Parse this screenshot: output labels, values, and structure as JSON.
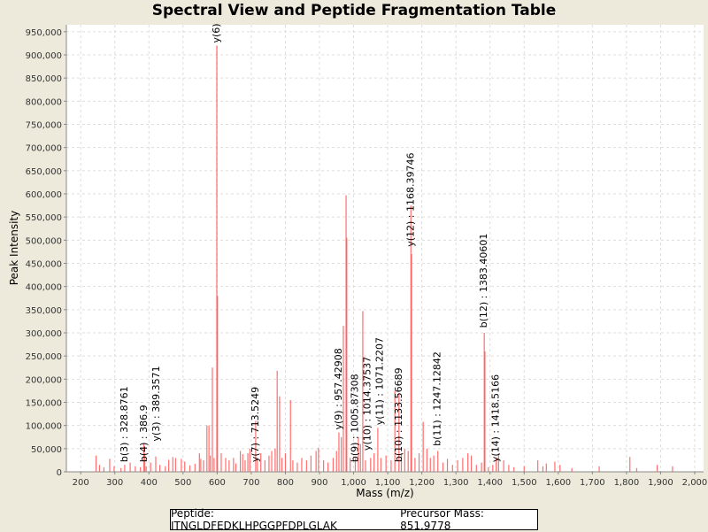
{
  "chart_data": {
    "type": "bar",
    "title": "Spectral View and Peptide Fragmentation Table",
    "xlabel": "Mass (m/z)",
    "ylabel": "Peak Intensity",
    "xlim": [
      158,
      2026
    ],
    "ylim": [
      0,
      965000
    ],
    "xticks": [
      200,
      300,
      400,
      500,
      600,
      700,
      800,
      900,
      1000,
      1100,
      1200,
      1300,
      1400,
      1500,
      1600,
      1700,
      1800,
      1900,
      2000
    ],
    "yticks": [
      0,
      50000,
      100000,
      150000,
      200000,
      250000,
      300000,
      350000,
      400000,
      450000,
      500000,
      550000,
      600000,
      650000,
      700000,
      750000,
      800000,
      850000,
      900000,
      950000
    ],
    "grid": true,
    "peak_color": "#ff5555",
    "peaks": [
      [
        245,
        35000
      ],
      [
        255,
        15000
      ],
      [
        268,
        10000
      ],
      [
        285,
        28000
      ],
      [
        298,
        12000
      ],
      [
        318,
        8000
      ],
      [
        329,
        15000
      ],
      [
        345,
        20000
      ],
      [
        360,
        12000
      ],
      [
        375,
        10000
      ],
      [
        385,
        60000
      ],
      [
        388,
        40000
      ],
      [
        392,
        12000
      ],
      [
        405,
        20000
      ],
      [
        420,
        33000
      ],
      [
        432,
        15000
      ],
      [
        448,
        12000
      ],
      [
        458,
        26000
      ],
      [
        470,
        32000
      ],
      [
        478,
        30000
      ],
      [
        495,
        28000
      ],
      [
        505,
        22000
      ],
      [
        520,
        14000
      ],
      [
        535,
        17000
      ],
      [
        548,
        40000
      ],
      [
        552,
        28000
      ],
      [
        560,
        25000
      ],
      [
        570,
        100000
      ],
      [
        576,
        100000
      ],
      [
        580,
        35000
      ],
      [
        586,
        225000
      ],
      [
        591,
        30000
      ],
      [
        599,
        920000
      ],
      [
        601,
        380000
      ],
      [
        612,
        40000
      ],
      [
        625,
        30000
      ],
      [
        635,
        25000
      ],
      [
        648,
        30000
      ],
      [
        655,
        18000
      ],
      [
        668,
        45000
      ],
      [
        675,
        38000
      ],
      [
        682,
        25000
      ],
      [
        690,
        40000
      ],
      [
        696,
        50000
      ],
      [
        713,
        110000
      ],
      [
        718,
        30000
      ],
      [
        728,
        40000
      ],
      [
        740,
        25000
      ],
      [
        752,
        35000
      ],
      [
        760,
        45000
      ],
      [
        770,
        50000
      ],
      [
        776,
        218000
      ],
      [
        783,
        163000
      ],
      [
        790,
        30000
      ],
      [
        800,
        40000
      ],
      [
        815,
        155000
      ],
      [
        822,
        25000
      ],
      [
        835,
        20000
      ],
      [
        848,
        30000
      ],
      [
        862,
        25000
      ],
      [
        875,
        35000
      ],
      [
        890,
        45000
      ],
      [
        897,
        52000
      ],
      [
        912,
        25000
      ],
      [
        925,
        20000
      ],
      [
        940,
        30000
      ],
      [
        950,
        45000
      ],
      [
        957,
        85000
      ],
      [
        964,
        75000
      ],
      [
        970,
        315000
      ],
      [
        978,
        597000
      ],
      [
        980,
        505000
      ],
      [
        990,
        30000
      ],
      [
        1005,
        30000
      ],
      [
        1014,
        75000
      ],
      [
        1020,
        60000
      ],
      [
        1027,
        347000
      ],
      [
        1035,
        25000
      ],
      [
        1050,
        30000
      ],
      [
        1060,
        40000
      ],
      [
        1071,
        95000
      ],
      [
        1080,
        30000
      ],
      [
        1095,
        35000
      ],
      [
        1110,
        25000
      ],
      [
        1121,
        175000
      ],
      [
        1133,
        170000
      ],
      [
        1140,
        40000
      ],
      [
        1150,
        50000
      ],
      [
        1160,
        45000
      ],
      [
        1168,
        575000
      ],
      [
        1170,
        470000
      ],
      [
        1180,
        30000
      ],
      [
        1192,
        40000
      ],
      [
        1204,
        108000
      ],
      [
        1215,
        50000
      ],
      [
        1225,
        30000
      ],
      [
        1235,
        35000
      ],
      [
        1247,
        45000
      ],
      [
        1262,
        20000
      ],
      [
        1275,
        28000
      ],
      [
        1290,
        15000
      ],
      [
        1305,
        25000
      ],
      [
        1320,
        30000
      ],
      [
        1335,
        40000
      ],
      [
        1345,
        35000
      ],
      [
        1360,
        15000
      ],
      [
        1375,
        20000
      ],
      [
        1383,
        300000
      ],
      [
        1385,
        260000
      ],
      [
        1395,
        10000
      ],
      [
        1408,
        15000
      ],
      [
        1418,
        30000
      ],
      [
        1425,
        40000
      ],
      [
        1440,
        25000
      ],
      [
        1455,
        15000
      ],
      [
        1470,
        10000
      ],
      [
        1500,
        12000
      ],
      [
        1540,
        25000
      ],
      [
        1555,
        12000
      ],
      [
        1565,
        18000
      ],
      [
        1590,
        22000
      ],
      [
        1605,
        15000
      ],
      [
        1640,
        8000
      ],
      [
        1720,
        12000
      ],
      [
        1810,
        32000
      ],
      [
        1830,
        8000
      ],
      [
        1890,
        15000
      ],
      [
        1935,
        12000
      ]
    ],
    "annotations": [
      {
        "label": "y(6)",
        "mz": 599,
        "intensity": 920000
      },
      {
        "label": "b(3) : 328.8761",
        "mz": 329,
        "intensity": 15000
      },
      {
        "label": "b(4) : 386.9",
        "mz": 386,
        "intensity": 15000
      },
      {
        "label": "y(3) : 389.3571",
        "mz": 389,
        "intensity": 60000
      },
      {
        "label": "y(7) : 713.5249",
        "mz": 713,
        "intensity": 15000
      },
      {
        "label": "y(9) : 957.42908",
        "mz": 957,
        "intensity": 85000
      },
      {
        "label": "b(9) : 1005.87308",
        "mz": 1005,
        "intensity": 15000
      },
      {
        "label": "y(10) : 1014.37537",
        "mz": 1014,
        "intensity": 40000
      },
      {
        "label": "y(11) : 1071.2207",
        "mz": 1071,
        "intensity": 95000
      },
      {
        "label": "b(10) : 1133.56689",
        "mz": 1133,
        "intensity": 15000
      },
      {
        "label": "y(12) : 1168.39746",
        "mz": 1168,
        "intensity": 480000
      },
      {
        "label": "b(11) : 1247.12842",
        "mz": 1247,
        "intensity": 50000
      },
      {
        "label": "b(12) : 1383.40601",
        "mz": 1383,
        "intensity": 305000
      },
      {
        "label": "y(14) : 1418.5166",
        "mz": 1418,
        "intensity": 15000
      }
    ]
  },
  "legend": {
    "peptide": "Peptide: ITNGLDFEDKLHPGGPFDPLGLAK",
    "precursor": "Precursor Mass: 851.9778"
  }
}
